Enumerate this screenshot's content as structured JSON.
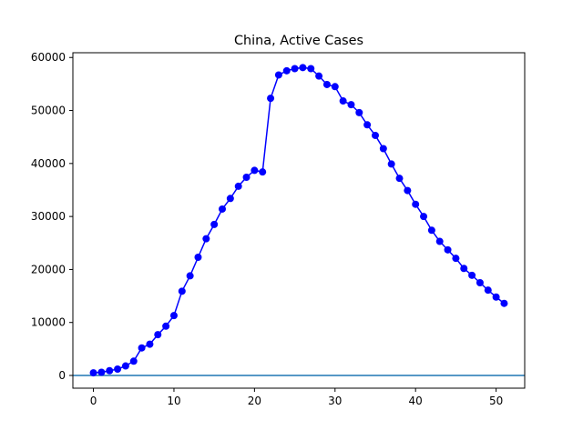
{
  "chart_data": {
    "type": "line",
    "title": "China, Active Cases",
    "xlabel": "",
    "ylabel": "",
    "xlim": [
      -2.55,
      53.55
    ],
    "ylim": [
      -2400,
      60900
    ],
    "x_ticks": [
      0,
      10,
      20,
      30,
      40,
      50
    ],
    "y_ticks": [
      0,
      10000,
      20000,
      30000,
      40000,
      50000,
      60000
    ],
    "grid": false,
    "legend": "none",
    "series": [
      {
        "color": "#0000ff",
        "marker": "circle",
        "x": [
          0,
          1,
          2,
          3,
          4,
          5,
          6,
          7,
          8,
          9,
          10,
          11,
          12,
          13,
          14,
          15,
          16,
          17,
          18,
          19,
          20,
          21,
          22,
          23,
          24,
          25,
          26,
          27,
          28,
          29,
          30,
          31,
          32,
          33,
          34,
          35,
          36,
          37,
          38,
          39,
          40,
          41,
          42,
          43,
          44,
          45,
          46,
          47,
          48,
          49,
          50,
          51
        ],
        "values": [
          500,
          600,
          900,
          1200,
          1800,
          2700,
          5200,
          5900,
          7700,
          9300,
          11300,
          15900,
          18800,
          22300,
          25800,
          28500,
          31400,
          33400,
          35700,
          37400,
          38700,
          38400,
          52300,
          56700,
          57500,
          57900,
          58100,
          57900,
          56500,
          54900,
          54500,
          51800,
          51100,
          49600,
          47300,
          45300,
          42800,
          39900,
          37200,
          34900,
          32300,
          30000,
          27400,
          25300,
          23700,
          22100,
          20200,
          18900,
          17500,
          16100,
          14800,
          13600
        ]
      }
    ],
    "reference_lines": [
      {
        "axis": "y",
        "value": 0,
        "color": "#1f77b4"
      }
    ]
  }
}
